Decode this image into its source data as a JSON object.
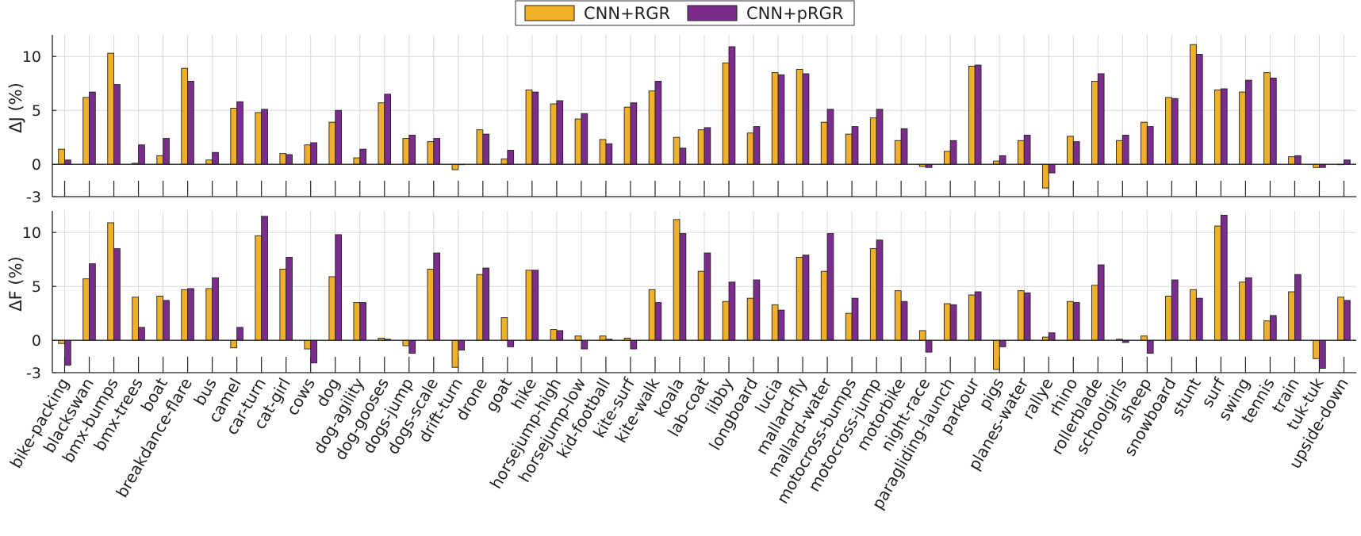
{
  "legend": [
    {
      "name": "CNN+RGR",
      "color": "#f0b02a"
    },
    {
      "name": "CNN+pRGR",
      "color": "#7b2d8e"
    }
  ],
  "chart_data": [
    {
      "type": "bar",
      "ylabel": "ΔJ (%)",
      "ylim": [
        -3,
        12
      ],
      "yticks": [
        -3,
        0,
        5,
        10
      ],
      "grid": true,
      "categories": [
        "bike-packing",
        "blackswan",
        "bmx-bumps",
        "bmx-trees",
        "boat",
        "breakdance-flare",
        "bus",
        "camel",
        "car-turn",
        "cat-girl",
        "cows",
        "dog",
        "dog-agility",
        "dog-gooses",
        "dogs-jump",
        "dogs-scale",
        "drift-turn",
        "drone",
        "goat",
        "hike",
        "horsejump-high",
        "horsejump-low",
        "kid-football",
        "kite-surf",
        "kite-walk",
        "koala",
        "lab-coat",
        "libby",
        "longboard",
        "lucia",
        "mallard-fly",
        "mallard-water",
        "motocross-bumps",
        "motocross-jump",
        "motorbike",
        "night-race",
        "paragliding-launch",
        "parkour",
        "pigs",
        "planes-water",
        "rallye",
        "rhino",
        "rollerblade",
        "schoolgirls",
        "sheep",
        "snowboard",
        "stunt",
        "surf",
        "swing",
        "tennis",
        "train",
        "tuk-tuk",
        "upside-down"
      ],
      "series": [
        {
          "name": "CNN+RGR",
          "color": "#f0b02a",
          "values": [
            1.4,
            6.2,
            10.3,
            0.1,
            0.8,
            8.9,
            0.4,
            5.2,
            4.8,
            1.0,
            1.8,
            3.9,
            0.6,
            5.7,
            2.4,
            2.1,
            -0.5,
            3.2,
            0.5,
            6.9,
            5.6,
            4.2,
            2.3,
            5.3,
            6.8,
            2.5,
            3.2,
            9.4,
            2.9,
            8.5,
            8.8,
            3.9,
            2.8,
            4.3,
            2.2,
            -0.2,
            1.2,
            9.1,
            0.3,
            2.2,
            -2.2,
            2.6,
            7.7,
            2.2,
            3.9,
            6.2,
            11.1,
            6.9,
            6.7,
            8.5,
            0.7,
            -0.3,
            0.0
          ]
        },
        {
          "name": "CNN+pRGR",
          "color": "#7b2d8e",
          "values": [
            0.4,
            6.7,
            7.4,
            1.8,
            2.4,
            7.7,
            1.1,
            5.8,
            5.1,
            0.9,
            2.0,
            5.0,
            1.4,
            6.5,
            2.7,
            2.4,
            0.0,
            2.8,
            1.3,
            6.7,
            5.9,
            4.7,
            1.9,
            5.7,
            7.7,
            1.5,
            3.4,
            10.9,
            3.5,
            8.3,
            8.4,
            5.1,
            3.5,
            5.1,
            3.3,
            -0.3,
            2.2,
            9.2,
            0.8,
            2.7,
            -0.8,
            2.1,
            8.4,
            2.7,
            3.5,
            6.1,
            10.2,
            7.0,
            7.8,
            8.0,
            0.8,
            -0.3,
            0.4
          ]
        }
      ]
    },
    {
      "type": "bar",
      "ylabel": "ΔF (%)",
      "ylim": [
        -3,
        12
      ],
      "yticks": [
        -3,
        0,
        5,
        10
      ],
      "grid": true,
      "categories": [
        "bike-packing",
        "blackswan",
        "bmx-bumps",
        "bmx-trees",
        "boat",
        "breakdance-flare",
        "bus",
        "camel",
        "car-turn",
        "cat-girl",
        "cows",
        "dog",
        "dog-agility",
        "dog-gooses",
        "dogs-jump",
        "dogs-scale",
        "drift-turn",
        "drone",
        "goat",
        "hike",
        "horsejump-high",
        "horsejump-low",
        "kid-football",
        "kite-surf",
        "kite-walk",
        "koala",
        "lab-coat",
        "libby",
        "longboard",
        "lucia",
        "mallard-fly",
        "mallard-water",
        "motocross-bumps",
        "motocross-jump",
        "motorbike",
        "night-race",
        "paragliding-launch",
        "parkour",
        "pigs",
        "planes-water",
        "rallye",
        "rhino",
        "rollerblade",
        "schoolgirls",
        "sheep",
        "snowboard",
        "stunt",
        "surf",
        "swing",
        "tennis",
        "train",
        "tuk-tuk",
        "upside-down"
      ],
      "series": [
        {
          "name": "CNN+RGR",
          "color": "#f0b02a",
          "values": [
            -0.3,
            5.7,
            10.9,
            4.0,
            4.1,
            4.7,
            4.8,
            -0.7,
            9.7,
            6.6,
            -0.8,
            5.9,
            3.5,
            0.2,
            -0.5,
            6.6,
            -2.5,
            6.1,
            2.1,
            6.5,
            1.0,
            0.4,
            0.4,
            0.2,
            4.7,
            11.2,
            6.4,
            3.6,
            3.9,
            3.3,
            7.7,
            6.4,
            2.5,
            8.5,
            4.6,
            0.9,
            3.4,
            4.2,
            -2.7,
            4.6,
            0.3,
            3.6,
            5.1,
            0.1,
            0.4,
            4.1,
            4.7,
            10.6,
            5.4,
            1.8,
            4.5,
            -1.7,
            4.0
          ]
        },
        {
          "name": "CNN+pRGR",
          "color": "#7b2d8e",
          "values": [
            -2.3,
            7.1,
            8.5,
            1.2,
            3.7,
            4.8,
            5.8,
            1.2,
            11.5,
            7.7,
            -2.1,
            9.8,
            3.5,
            0.1,
            -1.2,
            8.1,
            -0.9,
            6.7,
            -0.6,
            6.5,
            0.9,
            -0.8,
            0.1,
            -0.8,
            3.5,
            9.9,
            8.1,
            5.4,
            5.6,
            2.8,
            7.9,
            9.9,
            3.9,
            9.3,
            3.6,
            -1.1,
            3.3,
            4.5,
            -0.6,
            4.4,
            0.7,
            3.5,
            7.0,
            -0.2,
            -1.2,
            5.6,
            3.9,
            11.6,
            5.8,
            2.3,
            6.1,
            -2.6,
            3.7
          ]
        }
      ]
    }
  ]
}
